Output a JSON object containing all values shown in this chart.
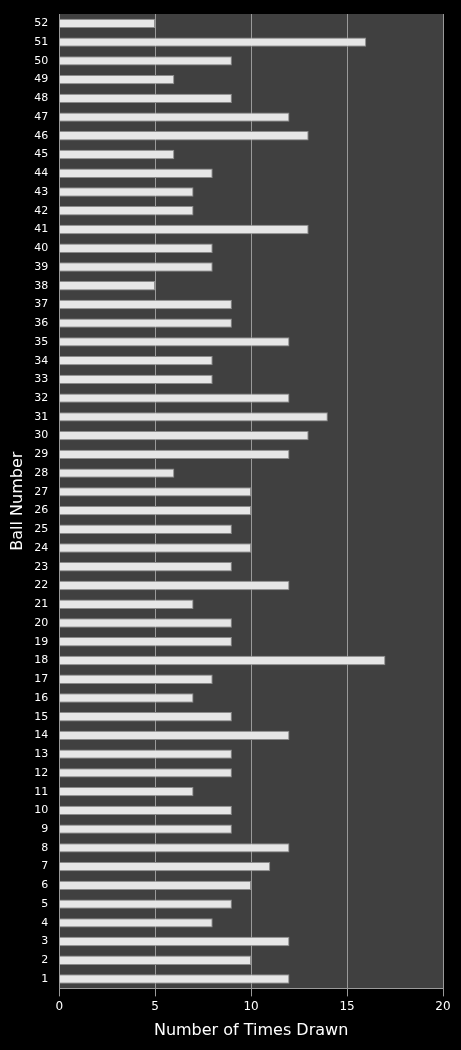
{
  "chart_data": {
    "type": "bar",
    "orientation": "horizontal",
    "xlabel": "Number of Times Drawn",
    "ylabel": "Ball Number",
    "categories": [
      "52",
      "51",
      "50",
      "49",
      "48",
      "47",
      "46",
      "45",
      "44",
      "43",
      "42",
      "41",
      "40",
      "39",
      "38",
      "37",
      "36",
      "35",
      "34",
      "33",
      "32",
      "31",
      "30",
      "29",
      "28",
      "27",
      "26",
      "25",
      "24",
      "23",
      "22",
      "21",
      "20",
      "19",
      "18",
      "17",
      "16",
      "15",
      "14",
      "13",
      "12",
      "11",
      "10",
      "9",
      "8",
      "7",
      "6",
      "5",
      "4",
      "3",
      "2",
      "1"
    ],
    "values": [
      5,
      16,
      9,
      6,
      9,
      12,
      13,
      6,
      8,
      7,
      7,
      13,
      8,
      8,
      5,
      9,
      9,
      12,
      8,
      8,
      12,
      14,
      13,
      12,
      6,
      10,
      10,
      9,
      10,
      9,
      12,
      7,
      9,
      9,
      17,
      8,
      7,
      9,
      12,
      9,
      9,
      7,
      9,
      9,
      12,
      11,
      10,
      9,
      8,
      12,
      10,
      12
    ],
    "color": "#e6e6e6",
    "xlim": [
      0,
      20
    ],
    "xticks": [
      0,
      5,
      10,
      15,
      20
    ],
    "grid": "x"
  }
}
